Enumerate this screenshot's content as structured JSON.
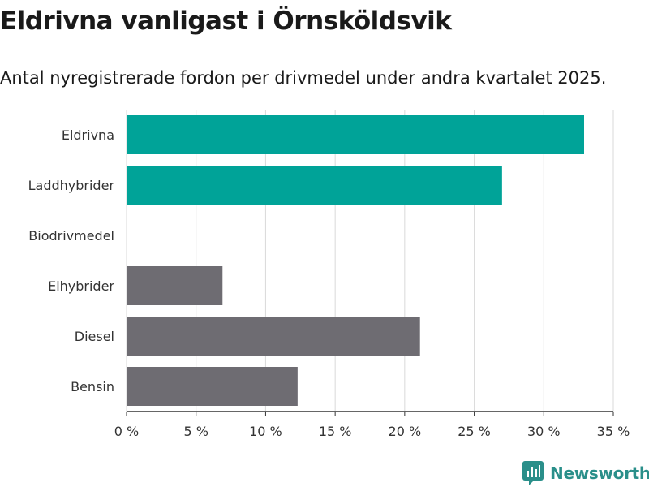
{
  "title": "Eldrivna vanligast i Örnsköldsvik",
  "subtitle": "Antal nyregistrerade fordon per drivmedel under andra kvartalet 2025.",
  "brand": {
    "name": "Newsworthy",
    "color": "#2a8f8a"
  },
  "colors": {
    "highlight": "#00a398",
    "default": "#6e6c72",
    "grid": "#d9d9d9"
  },
  "chart_data": {
    "type": "bar",
    "orientation": "horizontal",
    "categories": [
      "Eldrivna",
      "Laddhybrider",
      "Biodrivmedel",
      "Elhybrider",
      "Diesel",
      "Bensin"
    ],
    "values": [
      32.9,
      27.0,
      0,
      6.9,
      21.1,
      12.3
    ],
    "highlighted": [
      true,
      true,
      false,
      false,
      false,
      false
    ],
    "xlim": [
      0,
      35
    ],
    "xticks": [
      0,
      5,
      10,
      15,
      20,
      25,
      30,
      35
    ],
    "xtick_labels": [
      "0 %",
      "5 %",
      "10 %",
      "15 %",
      "20 %",
      "25 %",
      "30 %",
      "35 %"
    ],
    "grid": true
  }
}
